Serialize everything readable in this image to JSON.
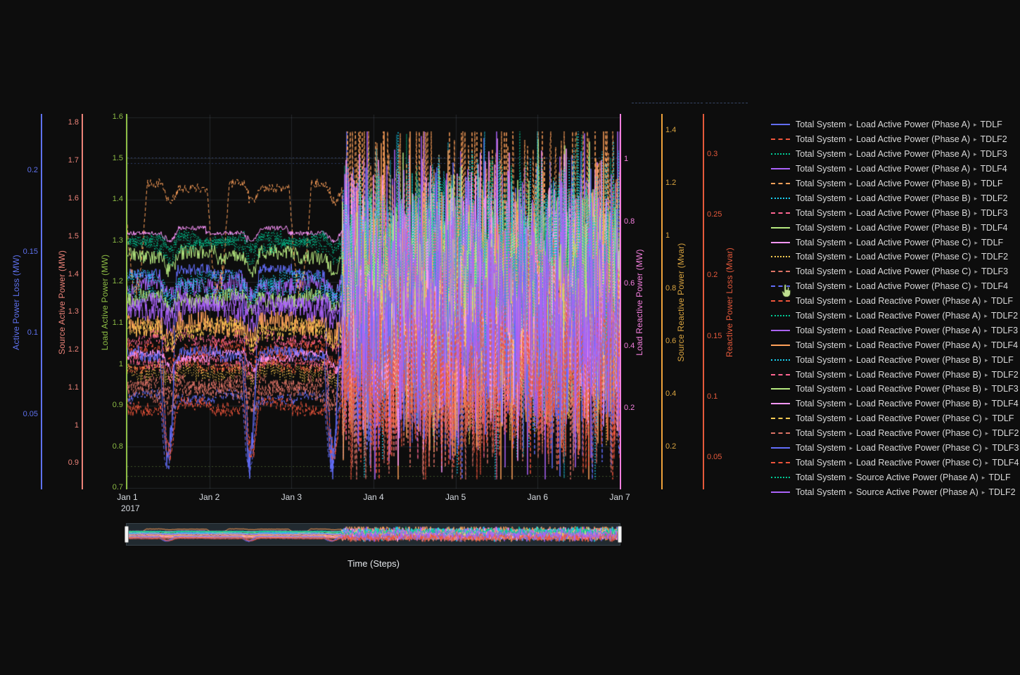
{
  "app": {
    "theme": "dark",
    "background": "#0d0d0d"
  },
  "chart_data": {
    "type": "line",
    "title": "",
    "grid": true,
    "legend_position": "right",
    "x": {
      "label": "Time (Steps)",
      "tick_labels": [
        "Jan 1",
        "Jan 2",
        "Jan 3",
        "Jan 4",
        "Jan 5",
        "Jan 6",
        "Jan 7"
      ],
      "year_label": "2017",
      "range_days": [
        0,
        6
      ],
      "pattern_note": "structured daily square-wave profiles until ~Jan 3, high-amplitude noise afterwards"
    },
    "axes": [
      {
        "id": "active_loss",
        "title": "Active Power Loss (MW)",
        "side": "left",
        "color": "#5E71EE",
        "ticks": [
          0.05,
          0.1,
          0.15,
          0.2
        ],
        "range": [
          0.0045,
          0.2343
        ]
      },
      {
        "id": "source_active",
        "title": "Source Active Power (MW)",
        "side": "left",
        "color": "#EC8379",
        "ticks": [
          0.9,
          1,
          1.1,
          1.2,
          1.3,
          1.4,
          1.5,
          1.6,
          1.7,
          1.8
        ],
        "range": [
          0.833,
          1.822
        ]
      },
      {
        "id": "load_active",
        "title": "Load Active Power (MW)",
        "side": "left",
        "color": "#8CBB44",
        "ticks": [
          0.7,
          0.8,
          0.9,
          1,
          1.1,
          1.2,
          1.3,
          1.4,
          1.5,
          1.6
        ],
        "range": [
          0.698,
          1.606
        ]
      },
      {
        "id": "load_reactive",
        "title": "Load Reactive Power (MW)",
        "side": "right",
        "color": "#F47FDE",
        "ticks": [
          0.2,
          0.4,
          0.6,
          0.8,
          1
        ],
        "range": [
          -0.058,
          1.144
        ]
      },
      {
        "id": "source_reactive",
        "title": "Source Reactive Power (Mvar)",
        "side": "right",
        "color": "#D8A33F",
        "ticks": [
          0.2,
          0.4,
          0.6,
          0.8,
          1,
          1.2,
          1.4
        ],
        "range": [
          0.041,
          1.459
        ]
      },
      {
        "id": "reactive_loss",
        "title": "Reactive Power Loss (Mvar)",
        "side": "right",
        "color": "#E4593B",
        "ticks": [
          0.05,
          0.1,
          0.15,
          0.2,
          0.25,
          0.3
        ],
        "range": [
          0.024,
          0.333
        ]
      }
    ],
    "legend_separator": "▸",
    "series": [
      {
        "group": "Total System",
        "metric": "Load Active Power (Phase A)",
        "device": "TDLF",
        "color": "#636EFA",
        "dash": "solid",
        "axis": "load_active",
        "base": 0.42,
        "noise": 0.34,
        "flat_noise": 0.03,
        "dip": {
          "phase": 0.4,
          "width": 0.2,
          "to": 0.94
        }
      },
      {
        "group": "Total System",
        "metric": "Load Active Power (Phase A)",
        "device": "TDLF2",
        "color": "#EF553B",
        "dash": "dash",
        "axis": "load_active",
        "base": 0.67,
        "noise": 0.3,
        "flat_noise": 0.03,
        "dip": {
          "phase": 0.42,
          "width": 0.2,
          "to": 0.91
        }
      },
      {
        "group": "Total System",
        "metric": "Load Active Power (Phase A)",
        "device": "TDLF3",
        "color": "#00CC96",
        "dash": "dot",
        "axis": "load_active",
        "base": 0.335,
        "noise": 0.26,
        "flat_noise": 0.025
      },
      {
        "group": "Total System",
        "metric": "Load Active Power (Phase A)",
        "device": "TDLF4",
        "color": "#AB63FA",
        "dash": "solid",
        "axis": "load_active",
        "base": 0.455,
        "noise": 0.38,
        "flat_noise": 0.05
      },
      {
        "group": "Total System",
        "metric": "Load Active Power (Phase B)",
        "device": "TDLF",
        "color": "#FFA15A",
        "dash": "dash",
        "axis": "load_active",
        "base": 0.19,
        "noise": 0.38,
        "flat_noise": 0.025,
        "dip": {
          "phase": 0.97,
          "width": 0.27,
          "to": 0.48
        }
      },
      {
        "group": "Total System",
        "metric": "Load Active Power (Phase B)",
        "device": "TDLF2",
        "color": "#19D3F3",
        "dash": "dot",
        "axis": "load_active",
        "base": 0.44,
        "noise": 0.42,
        "flat_noise": 0.04
      },
      {
        "group": "Total System",
        "metric": "Load Active Power (Phase B)",
        "device": "TDLF3",
        "color": "#FF6692",
        "dash": "dash",
        "axis": "load_active",
        "base": 0.66,
        "noise": 0.3,
        "flat_noise": 0.04
      },
      {
        "group": "Total System",
        "metric": "Load Active Power (Phase B)",
        "device": "TDLF4",
        "color": "#B6E880",
        "dash": "solid",
        "axis": "load_active",
        "base": 0.375,
        "noise": 0.26,
        "flat_noise": 0.04
      },
      {
        "group": "Total System",
        "metric": "Load Active Power (Phase C)",
        "device": "TDLF",
        "color": "#FF97FF",
        "dash": "solid",
        "axis": "load_active",
        "base": 0.31,
        "noise": 0.3,
        "flat_noise": 0.012
      },
      {
        "group": "Total System",
        "metric": "Load Active Power (Phase C)",
        "device": "TDLF2",
        "color": "#FECB52",
        "dash": "dot",
        "axis": "load_active",
        "base": 0.685,
        "noise": 0.27,
        "flat_noise": 0.05
      },
      {
        "group": "Total System",
        "metric": "Load Active Power (Phase C)",
        "device": "TDLF3",
        "color": "#DE7366",
        "dash": "dash",
        "axis": "load_active",
        "base": 0.72,
        "noise": 0.33,
        "flat_noise": 0.04
      },
      {
        "group": "Total System",
        "metric": "Load Active Power (Phase C)",
        "device": "TDLF4",
        "color": "#636EFA",
        "dash": "dash",
        "axis": "load_active",
        "base": 0.755,
        "noise": 0.3,
        "flat_noise": 0.03,
        "dip": {
          "phase": 0.4,
          "width": 0.18,
          "to": 0.95
        }
      },
      {
        "group": "Total System",
        "metric": "Load Reactive Power (Phase A)",
        "device": "TDLF",
        "color": "#EF553B",
        "dash": "dash",
        "axis": "load_reactive",
        "base": 0.63,
        "noise": 0.33,
        "flat_noise": 0.05
      },
      {
        "group": "Total System",
        "metric": "Load Reactive Power (Phase A)",
        "device": "TDLF2",
        "color": "#00CC96",
        "dash": "dot",
        "axis": "load_reactive",
        "base": 0.35,
        "noise": 0.25,
        "flat_noise": 0.03
      },
      {
        "group": "Total System",
        "metric": "Load Reactive Power (Phase A)",
        "device": "TDLF3",
        "color": "#AB63FA",
        "dash": "solid",
        "axis": "load_reactive",
        "base": 0.52,
        "noise": 0.4,
        "flat_noise": 0.06
      },
      {
        "group": "Total System",
        "metric": "Load Reactive Power (Phase A)",
        "device": "TDLF4",
        "color": "#FFA15A",
        "dash": "solid",
        "axis": "load_reactive",
        "base": 0.56,
        "noise": 0.44,
        "flat_noise": 0.06
      },
      {
        "group": "Total System",
        "metric": "Load Reactive Power (Phase B)",
        "device": "TDLF",
        "color": "#19D3F3",
        "dash": "dot",
        "axis": "load_reactive",
        "base": 0.47,
        "noise": 0.46,
        "flat_noise": 0.05
      },
      {
        "group": "Total System",
        "metric": "Load Reactive Power (Phase B)",
        "device": "TDLF2",
        "color": "#FF6692",
        "dash": "dash",
        "axis": "load_reactive",
        "base": 0.6,
        "noise": 0.3,
        "flat_noise": 0.04
      },
      {
        "group": "Total System",
        "metric": "Load Reactive Power (Phase B)",
        "device": "TDLF3",
        "color": "#B6E880",
        "dash": "solid",
        "axis": "load_reactive",
        "base": 0.49,
        "noise": 0.25,
        "flat_noise": 0.04
      },
      {
        "group": "Total System",
        "metric": "Load Reactive Power (Phase B)",
        "device": "TDLF4",
        "color": "#FF97FF",
        "dash": "solid",
        "axis": "load_reactive",
        "base": 0.645,
        "noise": 0.28,
        "flat_noise": 0.02
      },
      {
        "group": "Total System",
        "metric": "Load Reactive Power (Phase C)",
        "device": "TDLF",
        "color": "#FECB52",
        "dash": "dash",
        "axis": "load_reactive",
        "base": 0.575,
        "noise": 0.28,
        "flat_noise": 0.05
      },
      {
        "group": "Total System",
        "metric": "Load Reactive Power (Phase C)",
        "device": "TDLF2",
        "color": "#DE7366",
        "dash": "dash",
        "axis": "load_reactive",
        "base": 0.74,
        "noise": 0.34,
        "flat_noise": 0.05
      },
      {
        "group": "Total System",
        "metric": "Load Reactive Power (Phase C)",
        "device": "TDLF3",
        "color": "#636EFA",
        "dash": "solid",
        "axis": "load_reactive",
        "base": 0.64,
        "noise": 0.3,
        "flat_noise": 0.03,
        "dip": {
          "phase": 0.4,
          "width": 0.18,
          "to": 0.93
        }
      },
      {
        "group": "Total System",
        "metric": "Load Reactive Power (Phase C)",
        "device": "TDLF4",
        "color": "#EF553B",
        "dash": "dash",
        "axis": "load_reactive",
        "base": 0.78,
        "noise": 0.3,
        "flat_noise": 0.04,
        "dip": {
          "phase": 0.42,
          "width": 0.18,
          "to": 0.92
        }
      },
      {
        "group": "Total System",
        "metric": "Source Active Power (Phase A)",
        "device": "TDLF",
        "color": "#00CC96",
        "dash": "dot",
        "axis": "source_active",
        "base": 0.33,
        "noise": 0.26,
        "flat_noise": 0.03
      },
      {
        "group": "Total System",
        "metric": "Source Active Power (Phase A)",
        "device": "TDLF2",
        "color": "#AB63FA",
        "dash": "solid",
        "axis": "source_active",
        "base": 0.5,
        "noise": 0.36,
        "flat_noise": 0.04,
        "clipped": true
      }
    ],
    "reference_lines": [
      {
        "axis": "load_active",
        "value": 1.502,
        "style": "dotted",
        "color": "#5b79d8"
      },
      {
        "axis": "load_active",
        "value": 1.488,
        "style": "dotted",
        "color": "#5b79d8"
      },
      {
        "axis": "load_active",
        "value": 1.132,
        "style": "dotted",
        "color": "#cfd4dc"
      },
      {
        "axis": "load_active",
        "value": 0.753,
        "style": "dotted",
        "color": "#7fae4f"
      },
      {
        "axis": "load_active",
        "value": 0.728,
        "style": "dotted",
        "color": "#7fae4f"
      }
    ],
    "rangeslider": {
      "visible": true,
      "handle_color": "#f2f2f2"
    }
  },
  "cursor": {
    "type": "hand-pointer",
    "over": "legend item: Total System ▸ Load Active Power (Phase C) ▸ TDLF4"
  }
}
